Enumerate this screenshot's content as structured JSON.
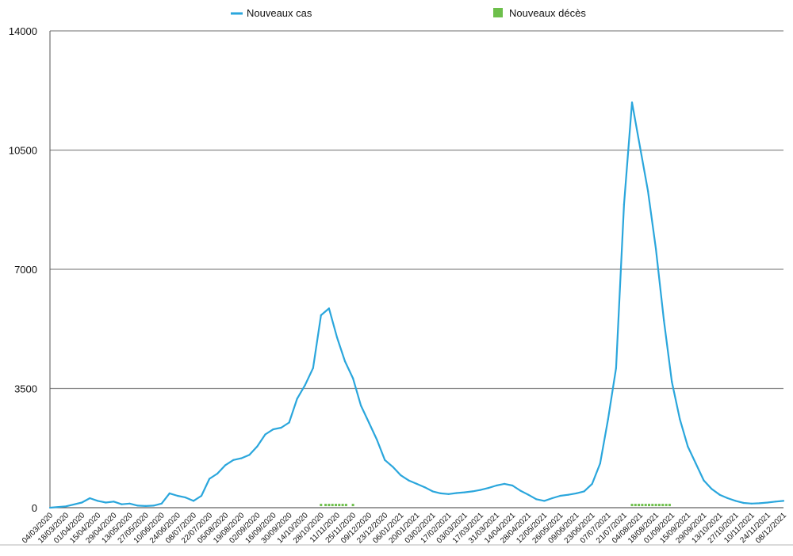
{
  "chart_data": {
    "type": "line",
    "title": "",
    "xlabel": "",
    "ylabel": "",
    "ylim": [
      0,
      14000
    ],
    "yticks": [
      0,
      3500,
      7000,
      10500,
      14000
    ],
    "ytick_labels": [
      "0",
      "3500",
      "7000",
      "10500",
      "14000"
    ],
    "grid": "horizontal",
    "legend_position": "top",
    "x_tick_labels": [
      "04/03/2020",
      "18/03/2020",
      "01/04/2020",
      "15/04/2020",
      "29/04/2020",
      "13/05/2020",
      "27/05/2020",
      "10/06/2020",
      "24/06/2020",
      "08/07/2020",
      "22/07/2020",
      "05/08/2020",
      "19/08/2020",
      "02/09/2020",
      "16/09/2020",
      "30/09/2020",
      "14/10/2020",
      "28/10/2020",
      "11/11/2020",
      "25/11/2020",
      "09/12/2020",
      "23/12/2020",
      "06/01/2021",
      "20/01/2021",
      "03/02/2021",
      "17/02/2021",
      "03/03/2021",
      "17/03/2021",
      "31/03/2021",
      "14/04/2021",
      "28/04/2021",
      "12/05/2021",
      "26/05/2021",
      "09/06/2021",
      "23/06/2021",
      "07/07/2021",
      "21/07/2021",
      "04/08/2021",
      "18/08/2021",
      "01/09/2021",
      "15/09/2021",
      "29/09/2021",
      "13/10/2021",
      "27/10/2021",
      "10/11/2021",
      "24/11/2021",
      "08/12/2021"
    ],
    "series": [
      {
        "name": "Nouveaux cas",
        "color": "#2aa6dc",
        "style": "line",
        "points": [
          [
            "04/03/2020",
            0
          ],
          [
            "18/03/2020",
            40
          ],
          [
            "01/04/2020",
            150
          ],
          [
            "08/04/2020",
            280
          ],
          [
            "15/04/2020",
            200
          ],
          [
            "22/04/2020",
            150
          ],
          [
            "29/04/2020",
            180
          ],
          [
            "06/05/2020",
            100
          ],
          [
            "13/05/2020",
            120
          ],
          [
            "20/05/2020",
            60
          ],
          [
            "27/05/2020",
            50
          ],
          [
            "03/06/2020",
            60
          ],
          [
            "10/06/2020",
            120
          ],
          [
            "17/06/2020",
            420
          ],
          [
            "24/06/2020",
            350
          ],
          [
            "01/07/2020",
            300
          ],
          [
            "08/07/2020",
            200
          ],
          [
            "15/07/2020",
            350
          ],
          [
            "22/07/2020",
            850
          ],
          [
            "29/07/2020",
            1000
          ],
          [
            "05/08/2020",
            1250
          ],
          [
            "12/08/2020",
            1400
          ],
          [
            "19/08/2020",
            1450
          ],
          [
            "26/08/2020",
            1550
          ],
          [
            "02/09/2020",
            1800
          ],
          [
            "09/09/2020",
            2150
          ],
          [
            "16/09/2020",
            2300
          ],
          [
            "23/09/2020",
            2350
          ],
          [
            "30/09/2020",
            2500
          ],
          [
            "07/10/2020",
            3200
          ],
          [
            "14/10/2020",
            3600
          ],
          [
            "21/10/2020",
            4100
          ],
          [
            "28/10/2020",
            5650
          ],
          [
            "04/11/2020",
            5850
          ],
          [
            "11/11/2020",
            5000
          ],
          [
            "18/11/2020",
            4300
          ],
          [
            "25/11/2020",
            3800
          ],
          [
            "02/12/2020",
            3000
          ],
          [
            "09/12/2020",
            2500
          ],
          [
            "16/12/2020",
            2000
          ],
          [
            "23/12/2020",
            1400
          ],
          [
            "30/12/2020",
            1200
          ],
          [
            "06/01/2021",
            950
          ],
          [
            "13/01/2021",
            800
          ],
          [
            "20/01/2021",
            700
          ],
          [
            "27/01/2021",
            600
          ],
          [
            "03/02/2021",
            480
          ],
          [
            "10/02/2021",
            420
          ],
          [
            "17/02/2021",
            400
          ],
          [
            "24/02/2021",
            430
          ],
          [
            "03/03/2021",
            450
          ],
          [
            "10/03/2021",
            480
          ],
          [
            "17/03/2021",
            520
          ],
          [
            "24/03/2021",
            580
          ],
          [
            "31/03/2021",
            650
          ],
          [
            "07/04/2021",
            700
          ],
          [
            "14/04/2021",
            650
          ],
          [
            "21/04/2021",
            500
          ],
          [
            "28/04/2021",
            380
          ],
          [
            "05/05/2021",
            250
          ],
          [
            "12/05/2021",
            200
          ],
          [
            "19/05/2021",
            280
          ],
          [
            "26/05/2021",
            350
          ],
          [
            "02/06/2021",
            380
          ],
          [
            "09/06/2021",
            420
          ],
          [
            "16/06/2021",
            480
          ],
          [
            "23/06/2021",
            700
          ],
          [
            "30/06/2021",
            1300
          ],
          [
            "07/07/2021",
            2600
          ],
          [
            "14/07/2021",
            4100
          ],
          [
            "21/07/2021",
            8900
          ],
          [
            "28/07/2021",
            11900
          ],
          [
            "04/08/2021",
            10600
          ],
          [
            "11/08/2021",
            9300
          ],
          [
            "18/08/2021",
            7600
          ],
          [
            "25/08/2021",
            5500
          ],
          [
            "01/09/2021",
            3700
          ],
          [
            "08/09/2021",
            2600
          ],
          [
            "15/09/2021",
            1800
          ],
          [
            "22/09/2021",
            1300
          ],
          [
            "29/09/2021",
            800
          ],
          [
            "06/10/2021",
            550
          ],
          [
            "13/10/2021",
            380
          ],
          [
            "20/10/2021",
            280
          ],
          [
            "27/10/2021",
            200
          ],
          [
            "03/11/2021",
            140
          ],
          [
            "10/11/2021",
            120
          ],
          [
            "17/11/2021",
            130
          ],
          [
            "24/11/2021",
            150
          ],
          [
            "01/12/2021",
            180
          ],
          [
            "08/12/2021",
            200
          ]
        ]
      },
      {
        "name": "Nouveaux décès",
        "color": "#6dbf4b",
        "style": "dots",
        "points": [
          [
            "28/10/2020",
            80
          ],
          [
            "01/11/2020",
            80
          ],
          [
            "04/11/2020",
            80
          ],
          [
            "07/11/2020",
            80
          ],
          [
            "10/11/2020",
            80
          ],
          [
            "13/11/2020",
            80
          ],
          [
            "16/11/2020",
            80
          ],
          [
            "19/11/2020",
            80
          ],
          [
            "25/11/2020",
            80
          ],
          [
            "28/07/2021",
            80
          ],
          [
            "31/07/2021",
            80
          ],
          [
            "03/08/2021",
            80
          ],
          [
            "06/08/2021",
            80
          ],
          [
            "09/08/2021",
            80
          ],
          [
            "12/08/2021",
            80
          ],
          [
            "15/08/2021",
            80
          ],
          [
            "18/08/2021",
            80
          ],
          [
            "21/08/2021",
            80
          ],
          [
            "24/08/2021",
            80
          ],
          [
            "27/08/2021",
            80
          ],
          [
            "30/08/2021",
            80
          ]
        ]
      }
    ]
  }
}
